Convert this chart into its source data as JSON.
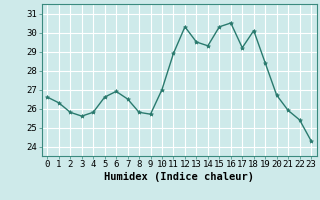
{
  "x": [
    0,
    1,
    2,
    3,
    4,
    5,
    6,
    7,
    8,
    9,
    10,
    11,
    12,
    13,
    14,
    15,
    16,
    17,
    18,
    19,
    20,
    21,
    22,
    23
  ],
  "y": [
    26.6,
    26.3,
    25.8,
    25.6,
    25.8,
    26.6,
    26.9,
    26.5,
    25.8,
    25.7,
    27.0,
    28.9,
    30.3,
    29.5,
    29.3,
    30.3,
    30.5,
    29.2,
    30.1,
    28.4,
    26.7,
    25.9,
    25.4,
    24.3
  ],
  "line_color": "#2a7a6e",
  "marker": "*",
  "marker_size": 3,
  "bg_color": "#ceeaea",
  "grid_color": "#ffffff",
  "xlabel": "Humidex (Indice chaleur)",
  "ylim": [
    23.5,
    31.5
  ],
  "yticks": [
    24,
    25,
    26,
    27,
    28,
    29,
    30,
    31
  ],
  "xticks": [
    0,
    1,
    2,
    3,
    4,
    5,
    6,
    7,
    8,
    9,
    10,
    11,
    12,
    13,
    14,
    15,
    16,
    17,
    18,
    19,
    20,
    21,
    22,
    23
  ],
  "tick_label_size": 6.5,
  "xlabel_size": 7.5,
  "spine_color": "#3a8a7e"
}
